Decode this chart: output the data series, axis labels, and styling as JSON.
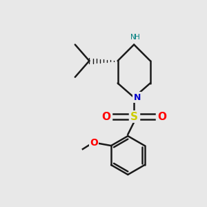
{
  "background_color": "#e8e8e8",
  "bond_color": "#1a1a1a",
  "nitrogen_color": "#0000cc",
  "nh_color": "#008080",
  "oxygen_color": "#ff0000",
  "sulfur_color": "#cccc00",
  "figsize": [
    3.0,
    3.0
  ],
  "dpi": 100,
  "xlim": [
    0,
    10
  ],
  "ylim": [
    0,
    10
  ]
}
